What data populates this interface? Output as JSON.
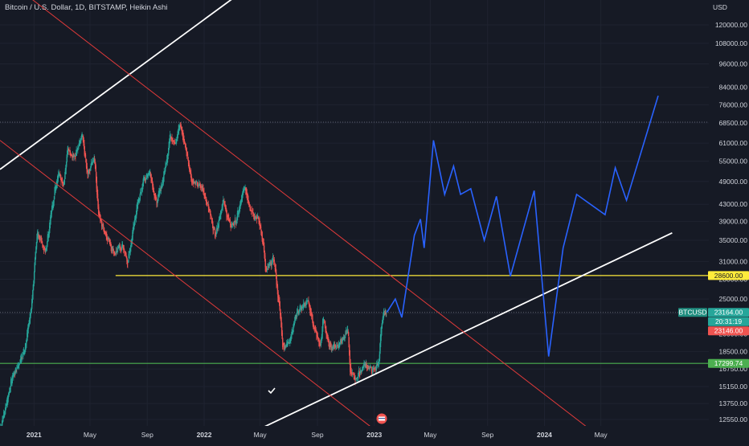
{
  "header": {
    "title": "Bitcoin / U.S. Dollar, 1D, BITSTAMP, Heikin Ashi"
  },
  "colors": {
    "background": "#161a25",
    "grid": "#1f2330",
    "up": "#26a69a",
    "down": "#ef5350",
    "projection": "#2962ff",
    "trendline": "#ffffff",
    "channel": "#e03a3a",
    "resistance": "#ffeb3b",
    "support": "#4caf50",
    "axis_text": "#d1d4dc"
  },
  "chart_data": {
    "type": "candlestick",
    "symbol": "BTCUSD",
    "y_unit": "USD",
    "y_scale": "log",
    "y_ticks": [
      12550,
      13750,
      15150,
      16750,
      18500,
      20500,
      23000,
      25000,
      28000,
      31000,
      35000,
      39000,
      43000,
      49000,
      55000,
      61000,
      68500,
      76000,
      84000,
      96000,
      108000,
      120000
    ],
    "y_tick_labels": [
      "12550.00",
      "13750.00",
      "15150.00",
      "16750.00",
      "18500.00",
      "20500.00",
      "23000.00",
      "25000.00",
      "28000.00",
      "31000.00",
      "35000.00",
      "39000.00",
      "43000.00",
      "49000.00",
      "55000.00",
      "61000.00",
      "68500.00",
      "76000.00",
      "84000.00",
      "96000.00",
      "108000.00",
      "120000.00"
    ],
    "y_axis_header": "USD",
    "x_ticks": [
      {
        "date": "2021-01-01",
        "label": "2021",
        "bold": true
      },
      {
        "date": "2021-05-01",
        "label": "May",
        "bold": false
      },
      {
        "date": "2021-09-01",
        "label": "Sep",
        "bold": false
      },
      {
        "date": "2022-01-01",
        "label": "2022",
        "bold": true
      },
      {
        "date": "2022-05-01",
        "label": "May",
        "bold": false
      },
      {
        "date": "2022-09-01",
        "label": "Sep",
        "bold": false
      },
      {
        "date": "2023-01-01",
        "label": "2023",
        "bold": true
      },
      {
        "date": "2023-05-01",
        "label": "May",
        "bold": false
      },
      {
        "date": "2023-09-01",
        "label": "Sep",
        "bold": false
      },
      {
        "date": "2024-01-01",
        "label": "2024",
        "bold": true
      },
      {
        "date": "2024-05-01",
        "label": "May",
        "bold": false
      }
    ],
    "price_series": [
      [
        "2020-10-20",
        11900
      ],
      [
        "2020-11-15",
        16000
      ],
      [
        "2020-12-10",
        18500
      ],
      [
        "2020-12-25",
        23500
      ],
      [
        "2021-01-08",
        37000
      ],
      [
        "2021-01-25",
        32500
      ],
      [
        "2021-02-10",
        44000
      ],
      [
        "2021-02-22",
        52000
      ],
      [
        "2021-03-05",
        48000
      ],
      [
        "2021-03-14",
        59500
      ],
      [
        "2021-03-28",
        56000
      ],
      [
        "2021-04-14",
        63500
      ],
      [
        "2021-04-25",
        50500
      ],
      [
        "2021-05-10",
        57000
      ],
      [
        "2021-05-19",
        40000
      ],
      [
        "2021-06-05",
        36000
      ],
      [
        "2021-06-22",
        32500
      ],
      [
        "2021-07-10",
        34000
      ],
      [
        "2021-07-20",
        30500
      ],
      [
        "2021-08-05",
        40000
      ],
      [
        "2021-08-22",
        49000
      ],
      [
        "2021-09-06",
        52000
      ],
      [
        "2021-09-20",
        43000
      ],
      [
        "2021-10-05",
        50000
      ],
      [
        "2021-10-20",
        64000
      ],
      [
        "2021-11-01",
        61000
      ],
      [
        "2021-11-09",
        68500
      ],
      [
        "2021-11-25",
        57000
      ],
      [
        "2021-12-05",
        49000
      ],
      [
        "2021-12-28",
        47000
      ],
      [
        "2022-01-10",
        42000
      ],
      [
        "2022-01-24",
        36000
      ],
      [
        "2022-02-10",
        44000
      ],
      [
        "2022-02-25",
        38000
      ],
      [
        "2022-03-10",
        39000
      ],
      [
        "2022-03-28",
        47500
      ],
      [
        "2022-04-10",
        42000
      ],
      [
        "2022-04-28",
        39000
      ],
      [
        "2022-05-08",
        34000
      ],
      [
        "2022-05-12",
        29000
      ],
      [
        "2022-05-30",
        31500
      ],
      [
        "2022-06-13",
        22500
      ],
      [
        "2022-06-18",
        19000
      ],
      [
        "2022-07-01",
        19500
      ],
      [
        "2022-07-20",
        23500
      ],
      [
        "2022-08-12",
        24500
      ],
      [
        "2022-08-25",
        21000
      ],
      [
        "2022-09-07",
        19000
      ],
      [
        "2022-09-13",
        22500
      ],
      [
        "2022-09-25",
        19000
      ],
      [
        "2022-10-15",
        19200
      ],
      [
        "2022-11-05",
        21000
      ],
      [
        "2022-11-09",
        16500
      ],
      [
        "2022-11-21",
        15800
      ],
      [
        "2022-12-10",
        17200
      ],
      [
        "2022-12-30",
        16550
      ],
      [
        "2023-01-10",
        17400
      ],
      [
        "2023-01-14",
        20500
      ],
      [
        "2023-01-21",
        23000
      ],
      [
        "2023-01-27",
        23164
      ]
    ],
    "projection_series": [
      [
        "2023-01-28",
        23164
      ],
      [
        "2023-02-15",
        25000
      ],
      [
        "2023-03-01",
        22500
      ],
      [
        "2023-03-28",
        36000
      ],
      [
        "2023-04-10",
        39500
      ],
      [
        "2023-04-18",
        33500
      ],
      [
        "2023-05-08",
        62000
      ],
      [
        "2023-06-01",
        45500
      ],
      [
        "2023-06-20",
        53500
      ],
      [
        "2023-07-05",
        45500
      ],
      [
        "2023-07-27",
        47000
      ],
      [
        "2023-08-25",
        35000
      ],
      [
        "2023-09-20",
        45000
      ],
      [
        "2023-10-20",
        28500
      ],
      [
        "2023-12-10",
        46500
      ],
      [
        "2024-01-10",
        18000
      ],
      [
        "2024-02-10",
        33500
      ],
      [
        "2024-03-10",
        45500
      ],
      [
        "2024-05-10",
        40500
      ],
      [
        "2024-06-01",
        53000
      ],
      [
        "2024-06-25",
        44000
      ],
      [
        "2024-09-01",
        80000
      ]
    ],
    "horizontal_levels": [
      {
        "price": 28600,
        "color": "#ffeb3b",
        "start_date": "2021-06-25",
        "label": "28600.00"
      },
      {
        "price": 17299.74,
        "color": "#4caf50",
        "start_date": "2020-10-20",
        "label": "17299.74"
      }
    ],
    "trend_lines": [
      {
        "color": "#ffffff",
        "points": [
          [
            "2020-10-20",
            52500
          ],
          [
            "2023-01-15",
            260000
          ]
        ]
      },
      {
        "color": "#ffffff",
        "points": [
          [
            "2022-05-01",
            11900
          ],
          [
            "2024-10-01",
            36500
          ]
        ]
      },
      {
        "color": "#e03a3a",
        "points": [
          [
            "2020-10-20",
            160000
          ],
          [
            "2024-04-10",
            11800
          ]
        ]
      },
      {
        "color": "#e03a3a",
        "points": [
          [
            "2020-10-20",
            62000
          ],
          [
            "2022-12-30",
            11900
          ]
        ]
      }
    ],
    "dotted_levels": [
      {
        "price": 68800
      },
      {
        "price": 23164
      }
    ],
    "price_tags": [
      {
        "label": "BTCUSD",
        "price": 23164,
        "color": "#1e8c7e",
        "text_color": "#ffffff"
      },
      {
        "label": "23164.00",
        "price": 23164,
        "color": "#26a69a",
        "text_color": "#ffffff",
        "slot": 0
      },
      {
        "label": "20:31:19",
        "price": 23164,
        "color": "#26a69a",
        "text_color": "#ffffff",
        "slot": 1
      },
      {
        "label": "23146.00",
        "price": 23146,
        "color": "#ef5350",
        "text_color": "#ffffff",
        "slot": 2
      },
      {
        "label": "28600.00",
        "price": 28600,
        "color": "#ffeb3b",
        "text_color": "#161a25"
      },
      {
        "label": "17299.74",
        "price": 17299.74,
        "color": "#4caf50",
        "text_color": "#ffffff"
      }
    ],
    "grid": true,
    "legend": "none"
  }
}
